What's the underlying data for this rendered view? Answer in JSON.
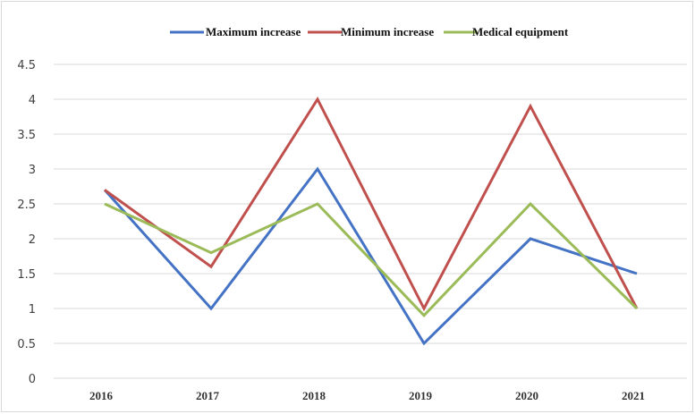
{
  "chart_data": {
    "type": "line",
    "title": "",
    "xlabel": "",
    "ylabel": "",
    "categories": [
      "2016",
      "2017",
      "2018",
      "2019",
      "2020",
      "2021"
    ],
    "ylim": [
      0,
      4.5
    ],
    "yticks": [
      "0",
      "0.5",
      "1",
      "1.5",
      "2",
      "2.5",
      "3",
      "3.5",
      "4",
      "4.5"
    ],
    "grid": true,
    "legend_position": "top",
    "series": [
      {
        "name": "Maximum increase",
        "color": "#4472c4",
        "values": [
          2.7,
          1.0,
          3.0,
          0.5,
          2.0,
          1.5
        ]
      },
      {
        "name": "Minimum increase",
        "color": "#c0504d",
        "values": [
          2.7,
          1.6,
          4.0,
          1.0,
          3.9,
          1.0
        ]
      },
      {
        "name": "Medical equipment",
        "color": "#9bbb59",
        "values": [
          2.5,
          1.8,
          2.5,
          0.9,
          2.5,
          1.0
        ]
      }
    ]
  }
}
